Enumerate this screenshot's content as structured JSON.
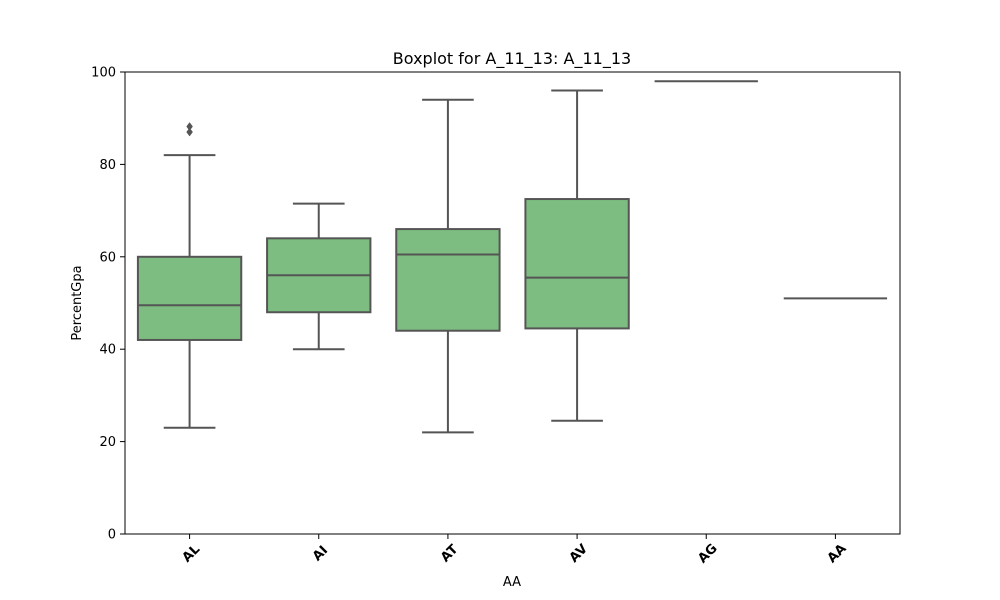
{
  "chart_data": {
    "type": "box",
    "title": "Boxplot for A_11_13: A_11_13",
    "xlabel": "AA",
    "ylabel": "PercentGpa",
    "ylim": [
      0,
      100
    ],
    "yticks": [
      0,
      20,
      40,
      60,
      80,
      100
    ],
    "grid": false,
    "box_color": "#7dbd81",
    "line_color": "#555555",
    "categories": [
      "AL",
      "AI",
      "AT",
      "AV",
      "AG",
      "AA"
    ],
    "boxes": [
      {
        "category": "AL",
        "whisker_low": 23,
        "q1": 42,
        "median": 49.5,
        "q3": 60,
        "whisker_high": 82,
        "outliers": [
          87,
          88.2
        ]
      },
      {
        "category": "AI",
        "whisker_low": 40,
        "q1": 48,
        "median": 56,
        "q3": 64,
        "whisker_high": 71.5,
        "outliers": []
      },
      {
        "category": "AT",
        "whisker_low": 22,
        "q1": 44,
        "median": 60.5,
        "q3": 66,
        "whisker_high": 94,
        "outliers": []
      },
      {
        "category": "AV",
        "whisker_low": 24.5,
        "q1": 44.5,
        "median": 55.5,
        "q3": 72.5,
        "whisker_high": 96,
        "outliers": []
      },
      {
        "category": "AG",
        "whisker_low": 98,
        "q1": 98,
        "median": 98,
        "q3": 98,
        "whisker_high": 98,
        "outliers": []
      },
      {
        "category": "AA",
        "whisker_low": 51,
        "q1": 51,
        "median": 51,
        "q3": 51,
        "whisker_high": 51,
        "outliers": []
      }
    ]
  }
}
